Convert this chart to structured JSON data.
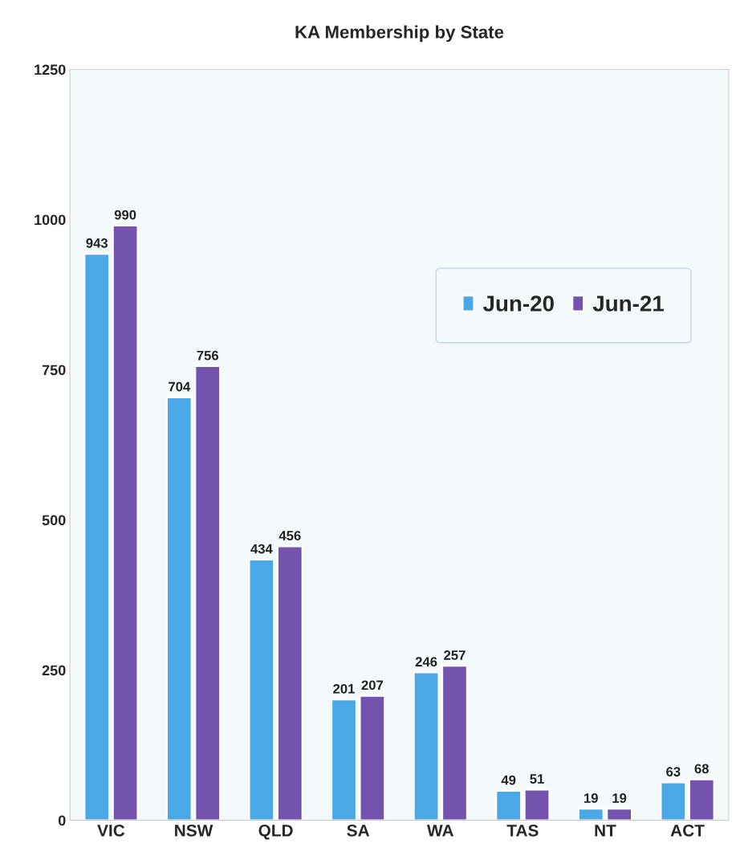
{
  "chart_data": {
    "type": "bar",
    "title": "KA Membership by State",
    "categories": [
      "VIC",
      "NSW",
      "QLD",
      "SA",
      "WA",
      "TAS",
      "NT",
      "ACT"
    ],
    "series": [
      {
        "name": "Jun-20",
        "color": "#4aa8e6",
        "values": [
          943,
          704,
          434,
          201,
          246,
          49,
          19,
          63
        ]
      },
      {
        "name": "Jun-21",
        "color": "#7353ae",
        "values": [
          990,
          756,
          456,
          207,
          257,
          51,
          19,
          68
        ]
      }
    ],
    "ylim": [
      0,
      1250
    ],
    "yticks": [
      0,
      250,
      500,
      750,
      1000,
      1250
    ],
    "data_labels": true,
    "legend": "top right",
    "grid": false
  }
}
